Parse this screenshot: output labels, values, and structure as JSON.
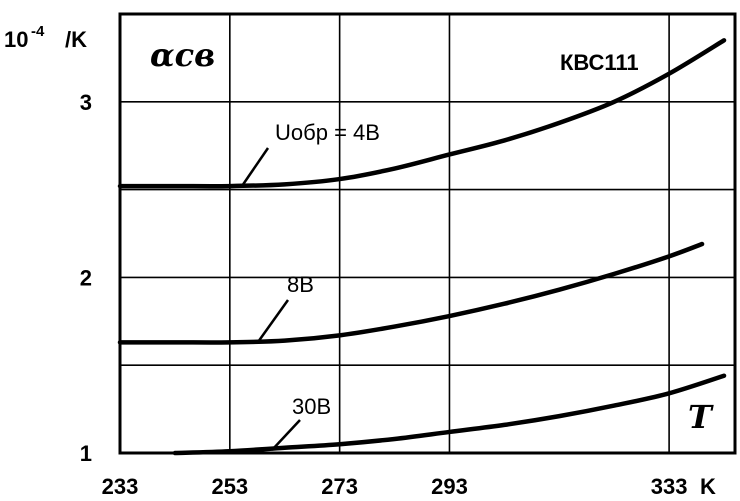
{
  "chart_data": {
    "type": "line",
    "title": "КВС111",
    "ylabel_unit": "10",
    "ylabel_exp": "-4",
    "ylabel_suffix": "/K",
    "ylabel_symbol": "αсв",
    "xlabel_unit": "K",
    "xlabel_symbol": "T",
    "x_ticks": [
      233,
      253,
      273,
      293,
      333
    ],
    "y_ticks": [
      1,
      2,
      3
    ],
    "xlim": [
      233,
      345
    ],
    "ylim": [
      1,
      3.5
    ],
    "grid": true,
    "series": [
      {
        "name": "Uобр = 4В",
        "x": [
          233,
          243,
          253,
          263,
          273,
          283,
          293,
          303,
          313,
          323,
          333,
          343
        ],
        "y": [
          2.52,
          2.52,
          2.52,
          2.53,
          2.56,
          2.62,
          2.7,
          2.78,
          2.88,
          3.0,
          3.16,
          3.35
        ]
      },
      {
        "name": "8В",
        "x": [
          233,
          243,
          253,
          263,
          273,
          283,
          293,
          303,
          313,
          323,
          333,
          339
        ],
        "y": [
          1.63,
          1.63,
          1.63,
          1.64,
          1.67,
          1.72,
          1.78,
          1.85,
          1.93,
          2.02,
          2.12,
          2.19
        ]
      },
      {
        "name": "30В",
        "x": [
          243,
          253,
          263,
          273,
          283,
          293,
          303,
          313,
          323,
          333,
          343
        ],
        "y": [
          1.0,
          1.01,
          1.03,
          1.05,
          1.08,
          1.12,
          1.16,
          1.21,
          1.27,
          1.34,
          1.44
        ]
      }
    ]
  }
}
